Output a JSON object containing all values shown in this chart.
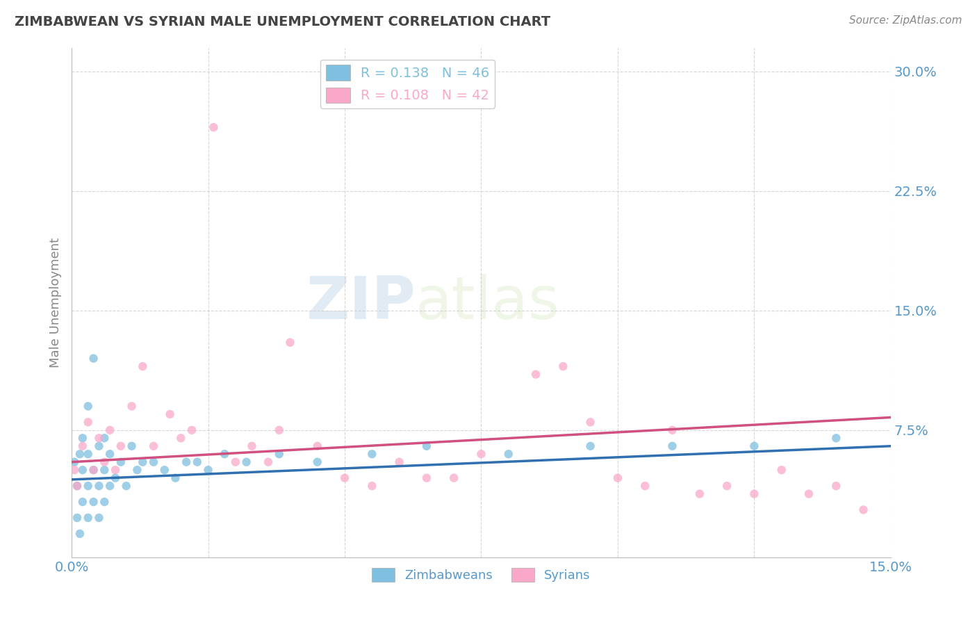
{
  "title": "ZIMBABWEAN VS SYRIAN MALE UNEMPLOYMENT CORRELATION CHART",
  "source_text": "Source: ZipAtlas.com",
  "ylabel": "Male Unemployment",
  "xlim": [
    0.0,
    0.15
  ],
  "ylim": [
    -0.005,
    0.315
  ],
  "yticks": [
    0.075,
    0.15,
    0.225,
    0.3
  ],
  "ytick_labels": [
    "7.5%",
    "15.0%",
    "22.5%",
    "30.0%"
  ],
  "xticks": [
    0.0,
    0.025,
    0.05,
    0.075,
    0.1,
    0.125,
    0.15
  ],
  "xtick_labels": [
    "0.0%",
    "",
    "",
    "",
    "",
    "",
    "15.0%"
  ],
  "legend_entries": [
    {
      "label": "R = 0.138   N = 46",
      "color": "#7fbfdf"
    },
    {
      "label": "R = 0.108   N = 42",
      "color": "#f9a8c9"
    }
  ],
  "legend_bottom_labels": [
    "Zimbabweans",
    "Syrians"
  ],
  "zim_color": "#7fbfdf",
  "syr_color": "#f9a8c9",
  "zim_line_color": "#3070b0",
  "syr_line_color": "#d05080",
  "title_color": "#444444",
  "axis_label_color": "#888888",
  "tick_color": "#5599cc",
  "watermark_zip": "ZIP",
  "watermark_atlas": "atlas",
  "background_color": "#ffffff",
  "grid_color": "#cccccc",
  "zim_scatter_x": [
    0.0005,
    0.001,
    0.001,
    0.0015,
    0.0015,
    0.002,
    0.002,
    0.002,
    0.003,
    0.003,
    0.003,
    0.003,
    0.004,
    0.004,
    0.004,
    0.005,
    0.005,
    0.005,
    0.006,
    0.006,
    0.006,
    0.007,
    0.007,
    0.008,
    0.009,
    0.01,
    0.011,
    0.012,
    0.013,
    0.015,
    0.017,
    0.019,
    0.021,
    0.023,
    0.025,
    0.028,
    0.032,
    0.038,
    0.045,
    0.055,
    0.065,
    0.08,
    0.095,
    0.11,
    0.125,
    0.14
  ],
  "zim_scatter_y": [
    0.055,
    0.02,
    0.04,
    0.01,
    0.06,
    0.03,
    0.05,
    0.07,
    0.02,
    0.04,
    0.06,
    0.09,
    0.03,
    0.05,
    0.12,
    0.02,
    0.04,
    0.065,
    0.03,
    0.05,
    0.07,
    0.04,
    0.06,
    0.045,
    0.055,
    0.04,
    0.065,
    0.05,
    0.055,
    0.055,
    0.05,
    0.045,
    0.055,
    0.055,
    0.05,
    0.06,
    0.055,
    0.06,
    0.055,
    0.06,
    0.065,
    0.06,
    0.065,
    0.065,
    0.065,
    0.07
  ],
  "syr_scatter_x": [
    0.0005,
    0.001,
    0.002,
    0.003,
    0.004,
    0.005,
    0.006,
    0.007,
    0.008,
    0.009,
    0.011,
    0.013,
    0.015,
    0.018,
    0.02,
    0.022,
    0.026,
    0.03,
    0.033,
    0.036,
    0.038,
    0.04,
    0.045,
    0.05,
    0.055,
    0.06,
    0.065,
    0.07,
    0.075,
    0.085,
    0.09,
    0.095,
    0.1,
    0.105,
    0.11,
    0.115,
    0.12,
    0.125,
    0.13,
    0.135,
    0.14,
    0.145
  ],
  "syr_scatter_y": [
    0.05,
    0.04,
    0.065,
    0.08,
    0.05,
    0.07,
    0.055,
    0.075,
    0.05,
    0.065,
    0.09,
    0.115,
    0.065,
    0.085,
    0.07,
    0.075,
    0.265,
    0.055,
    0.065,
    0.055,
    0.075,
    0.13,
    0.065,
    0.045,
    0.04,
    0.055,
    0.045,
    0.045,
    0.06,
    0.11,
    0.115,
    0.08,
    0.045,
    0.04,
    0.075,
    0.035,
    0.04,
    0.035,
    0.05,
    0.035,
    0.04,
    0.025
  ],
  "zim_line_x0": 0.0,
  "zim_line_x1": 0.15,
  "zim_line_y0": 0.044,
  "zim_line_y1": 0.065,
  "syr_line_x0": 0.0,
  "syr_line_x1": 0.15,
  "syr_line_y0": 0.055,
  "syr_line_y1": 0.083
}
